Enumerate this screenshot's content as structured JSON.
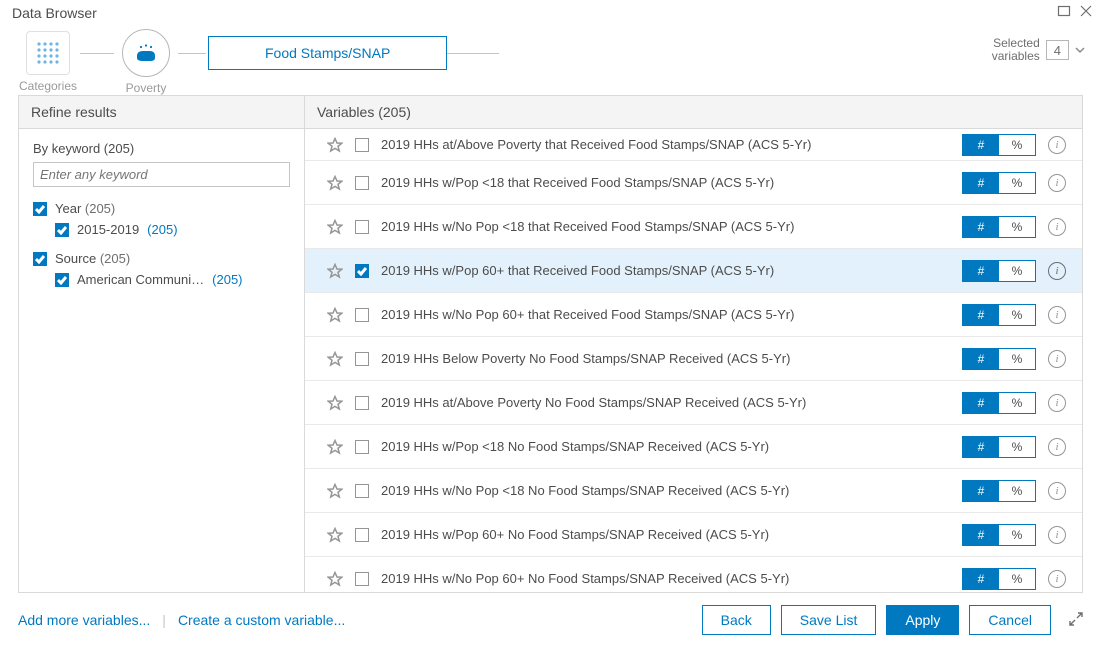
{
  "window": {
    "title": "Data Browser"
  },
  "breadcrumb": {
    "categories_label": "Categories",
    "poverty_label": "Poverty",
    "topic": "Food Stamps/SNAP"
  },
  "selected_vars": {
    "label_top": "Selected",
    "label_bottom": "variables",
    "count": "4"
  },
  "sidebar": {
    "title": "Refine results",
    "by_keyword_label": "By keyword (205)",
    "keyword_placeholder": "Enter any keyword",
    "filters": [
      {
        "label": "Year",
        "count": "(205)",
        "children": [
          {
            "label": "2015-2019",
            "count": "(205)"
          }
        ]
      },
      {
        "label": "Source",
        "count": "(205)",
        "children": [
          {
            "label": "American Communi…",
            "count": "(205)"
          }
        ]
      }
    ]
  },
  "content": {
    "header": "Variables (205)",
    "toggle": {
      "count_label": "#",
      "pct_label": "%"
    },
    "rows": [
      {
        "label": "2019 HHs at/Above Poverty that Received Food Stamps/SNAP (ACS 5-Yr)",
        "checked": false
      },
      {
        "label": "2019 HHs w/Pop <18 that Received Food Stamps/SNAP (ACS 5-Yr)",
        "checked": false
      },
      {
        "label": "2019 HHs w/No Pop <18 that Received Food Stamps/SNAP (ACS 5-Yr)",
        "checked": false
      },
      {
        "label": "2019 HHs w/Pop 60+ that Received Food Stamps/SNAP (ACS 5-Yr)",
        "checked": true
      },
      {
        "label": "2019 HHs w/No Pop 60+ that Received Food Stamps/SNAP (ACS 5-Yr)",
        "checked": false
      },
      {
        "label": "2019 HHs Below Poverty No Food Stamps/SNAP Received (ACS 5-Yr)",
        "checked": false
      },
      {
        "label": "2019 HHs at/Above Poverty No Food Stamps/SNAP Received (ACS 5-Yr)",
        "checked": false
      },
      {
        "label": "2019 HHs w/Pop <18 No Food Stamps/SNAP Received (ACS 5-Yr)",
        "checked": false
      },
      {
        "label": "2019 HHs w/No Pop <18 No Food Stamps/SNAP Received (ACS 5-Yr)",
        "checked": false
      },
      {
        "label": "2019 HHs w/Pop 60+ No Food Stamps/SNAP Received (ACS 5-Yr)",
        "checked": false
      },
      {
        "label": "2019 HHs w/No Pop 60+ No Food Stamps/SNAP Received (ACS 5-Yr)",
        "checked": false
      }
    ]
  },
  "footer": {
    "add_more": "Add more variables...",
    "custom": "Create a custom variable...",
    "back": "Back",
    "save": "Save List",
    "apply": "Apply",
    "cancel": "Cancel"
  },
  "colors": {
    "accent": "#0079c1"
  }
}
